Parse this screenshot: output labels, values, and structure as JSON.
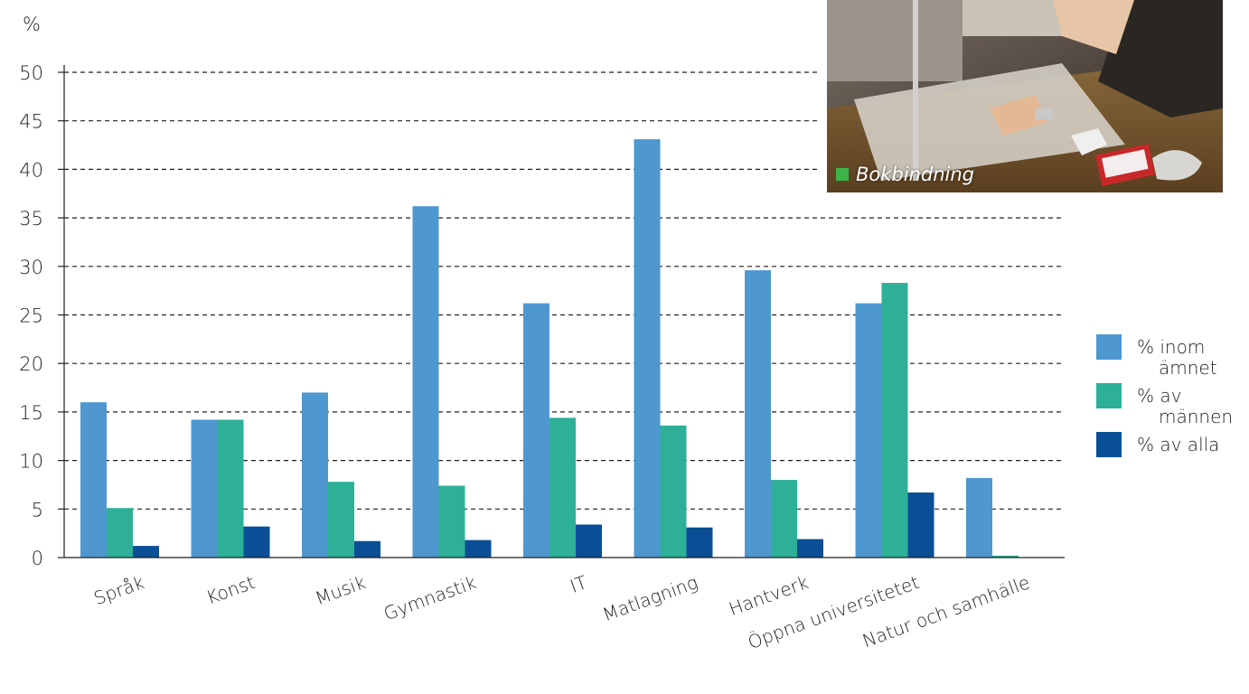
{
  "unit_label": "%",
  "photo": {
    "caption": "Bokbindning",
    "marker_color": "#3cb44a"
  },
  "chart_data": {
    "type": "bar",
    "title": "",
    "xlabel": "",
    "ylabel": "%",
    "ylim": [
      0,
      50
    ],
    "yticks": [
      0,
      5,
      10,
      15,
      20,
      25,
      30,
      35,
      40,
      45,
      50
    ],
    "grid": true,
    "legend_position": "right",
    "categories": [
      "Språk",
      "Konst",
      "Musik",
      "Gymnastik",
      "IT",
      "Matlagning",
      "Hantverk",
      "Öppna universitetet",
      "Natur och samhälle"
    ],
    "series": [
      {
        "name": "% inom ämnet",
        "legend_lines": [
          "% inom",
          "ämnet"
        ],
        "color": "#4f97cf",
        "values": [
          16,
          14.2,
          17,
          36.2,
          26.2,
          43.1,
          29.6,
          26.2,
          8.2
        ]
      },
      {
        "name": "% av männen",
        "legend_lines": [
          "% av",
          "männen"
        ],
        "color": "#2db097",
        "values": [
          5.1,
          14.2,
          7.8,
          7.4,
          14.4,
          13.6,
          8,
          28.3,
          0.2
        ]
      },
      {
        "name": "% av alla",
        "legend_lines": [
          "% av alla"
        ],
        "color": "#0a4f96",
        "values": [
          1.2,
          3.2,
          1.7,
          1.8,
          3.4,
          3.1,
          1.9,
          6.7,
          0
        ]
      }
    ]
  }
}
